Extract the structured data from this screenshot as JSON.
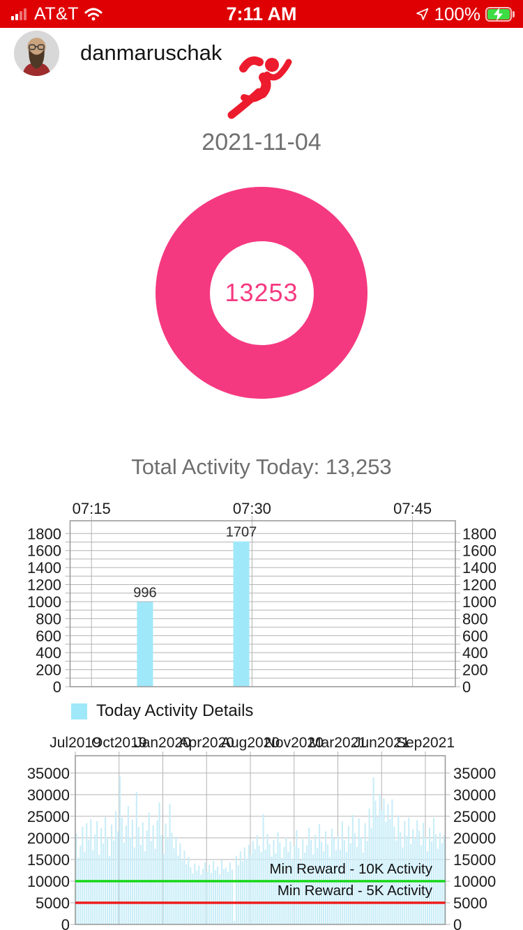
{
  "theme": {
    "header_color": "#DF0004",
    "accent_pink": "#F53980",
    "runner_red": "#EC1B2D",
    "grid_color": "#B3B3B3",
    "frame_color": "#9C9C9C"
  },
  "status_bar": {
    "carrier": "AT&T",
    "time": "7:11 AM",
    "battery_percent": "100%"
  },
  "profile": {
    "username": "danmaruschak",
    "date": "2021-11-04"
  },
  "donut": {
    "value": "13253",
    "color": "#F53980"
  },
  "total_label": "Total Activity Today: 13,253",
  "chart_data": [
    {
      "type": "bar",
      "name": "today-activity-details",
      "legend": "Today Activity Details",
      "bar_color": "#9FE8F9",
      "x_domain": [
        "07:13",
        "07:49"
      ],
      "x_ticks": [
        "07:15",
        "07:30",
        "07:45"
      ],
      "ylim": [
        0,
        1950
      ],
      "y_ticks": [
        0,
        200,
        400,
        600,
        800,
        1000,
        1200,
        1400,
        1600,
        1800
      ],
      "y_grid_step": 100,
      "grid": true,
      "bars": [
        {
          "time": "07:20",
          "value": 996
        },
        {
          "time": "07:29",
          "value": 1707
        }
      ]
    },
    {
      "type": "bar",
      "name": "activity-history",
      "bar_color": "#C9EDF8",
      "x_ticks": [
        "Jul2019",
        "Oct2019",
        "Jan2020",
        "Apr2020",
        "Aug2020",
        "Nov2020",
        "Mar2021",
        "Jun2021",
        "Sep2021"
      ],
      "ylim": [
        0,
        39000
      ],
      "y_ticks": [
        0,
        5000,
        10000,
        15000,
        20000,
        25000,
        30000,
        35000
      ],
      "grid": true,
      "reference_lines": [
        {
          "label": "Min Reward - 10K Activity",
          "value": 10000,
          "color": "#14D714"
        },
        {
          "label": "Min Reward - 5K Activity",
          "value": 5000,
          "color": "#EF1717"
        }
      ],
      "values": [
        21000,
        15400,
        18200,
        22600,
        16800,
        23400,
        19600,
        24300,
        17200,
        20800,
        23900,
        16100,
        22300,
        18700,
        24800,
        20200,
        15800,
        23100,
        19400,
        26200,
        21500,
        34200,
        24700,
        18900,
        22800,
        27400,
        20100,
        24200,
        17800,
        30600,
        22500,
        18400,
        23600,
        16900,
        21700,
        25800,
        19300,
        22900,
        17500,
        24100,
        28200,
        20600,
        16300,
        23300,
        19800,
        27900,
        21200,
        17600,
        20300,
        15900,
        18800,
        14700,
        17100,
        13900,
        15600,
        13200,
        11800,
        14100,
        12400,
        13600,
        11500,
        12900,
        14400,
        12100,
        13800,
        11900,
        14700,
        12600,
        13400,
        11600,
        14900,
        12800,
        13100,
        12200,
        14300,
        12700,
        800,
        15800,
        13700,
        16900,
        14600,
        17800,
        15200,
        18400,
        16100,
        19300,
        17400,
        20600,
        18200,
        16700,
        25500,
        17300,
        20900,
        18600,
        15700,
        19500,
        16400,
        21300,
        18900,
        15300,
        17900,
        20100,
        16800,
        19200,
        15100,
        18100,
        21800,
        17600,
        14900,
        19700,
        16600,
        18300,
        22400,
        19600,
        16200,
        20700,
        17700,
        23200,
        19100,
        16900,
        21500,
        18500,
        15600,
        22100,
        19900,
        17200,
        20400,
        17300,
        23800,
        19500,
        16800,
        22700,
        18800,
        25300,
        21100,
        17900,
        24500,
        20200,
        16600,
        23400,
        19300,
        26800,
        22300,
        34000,
        28600,
        24800,
        30200,
        26400,
        29100,
        23700,
        27800,
        24300,
        28900,
        22600,
        19400,
        25200,
        21300,
        17800,
        23900,
        20500,
        24700,
        18600,
        22000,
        19800,
        24100,
        21700,
        18300,
        23500,
        20100,
        16900,
        22400,
        19200,
        24600,
        20900,
        17500,
        21200,
        18800,
        20600
      ]
    }
  ]
}
